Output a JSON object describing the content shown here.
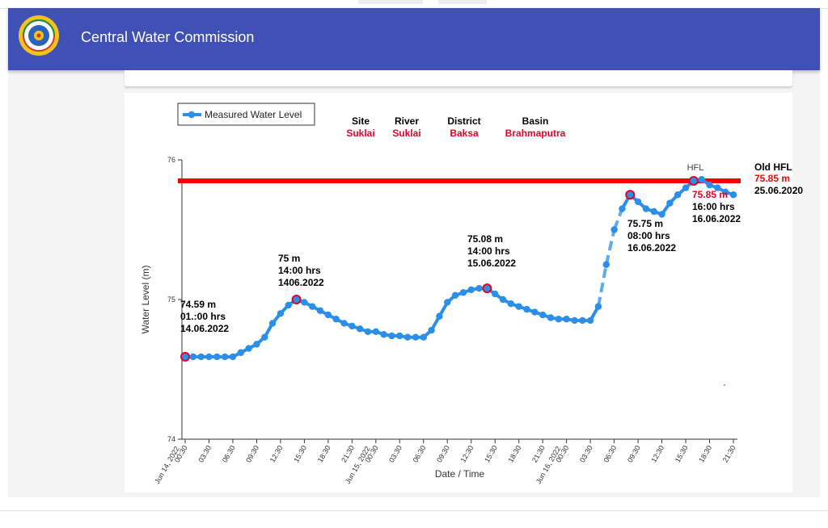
{
  "header": {
    "title": "Central Water Commission",
    "logo_icon": "cwc-emblem-icon"
  },
  "colors": {
    "app_bar": "#3f51b5",
    "series": "#2b8fe8",
    "hfl_line": "#ff0000",
    "highlight_red": "#e8002a"
  },
  "chart_data": {
    "type": "line",
    "xlabel": "Date / Time",
    "ylabel": "Water Level (m)",
    "ylim": [
      74,
      76
    ],
    "yticks": [
      "74",
      "75",
      "76"
    ],
    "grid": false,
    "legend": {
      "label": "Measured Water Level",
      "placement": "top-left"
    },
    "info": [
      {
        "label": "Site",
        "value": "Suklai"
      },
      {
        "label": "River",
        "value": "Suklai"
      },
      {
        "label": "District",
        "value": "Baksa"
      },
      {
        "label": "Basin",
        "value": "Brahmaputra"
      }
    ],
    "x_tick_labels": [
      "00:30",
      "03:30",
      "06:30",
      "09:30",
      "12:30",
      "15:30",
      "18:30",
      "21:30",
      "00:30",
      "03:30",
      "06:30",
      "09:30",
      "12:30",
      "15:30",
      "18:30",
      "21:30",
      "00:30",
      "03:30",
      "06:30",
      "09:30",
      "12:30",
      "15:30",
      "18:30",
      "21:30"
    ],
    "x_date_labels": [
      {
        "tick": 0,
        "text": "Jun 14, 2022"
      },
      {
        "tick": 8,
        "text": "Jun 15, 2022"
      },
      {
        "tick": 16,
        "text": "Jun 16, 2022"
      }
    ],
    "series": [
      {
        "name": "Measured Water Level",
        "points": [
          [
            0,
            74.59
          ],
          [
            1,
            74.59
          ],
          [
            2,
            74.59
          ],
          [
            3,
            74.59
          ],
          [
            4,
            74.59
          ],
          [
            5,
            74.59
          ],
          [
            6,
            74.59
          ],
          [
            7,
            74.62
          ],
          [
            8,
            74.65
          ],
          [
            9,
            74.68
          ],
          [
            10,
            74.73
          ],
          [
            11,
            74.83
          ],
          [
            12,
            74.9
          ],
          [
            13,
            74.96
          ],
          [
            14,
            75.0
          ],
          [
            15,
            74.98
          ],
          [
            16,
            74.95
          ],
          [
            17,
            74.92
          ],
          [
            18,
            74.89
          ],
          [
            19,
            74.86
          ],
          [
            20,
            74.83
          ],
          [
            21,
            74.81
          ],
          [
            22,
            74.79
          ],
          [
            23,
            74.77
          ],
          [
            24,
            74.77
          ],
          [
            25,
            74.75
          ],
          [
            26,
            74.74
          ],
          [
            27,
            74.74
          ],
          [
            28,
            74.73
          ],
          [
            29,
            74.73
          ],
          [
            30,
            74.73
          ],
          [
            31,
            74.78
          ],
          [
            32,
            74.88
          ],
          [
            33,
            74.98
          ],
          [
            34,
            75.03
          ],
          [
            35,
            75.05
          ],
          [
            36,
            75.07
          ],
          [
            37,
            75.08
          ],
          [
            38,
            75.08
          ],
          [
            39,
            75.04
          ],
          [
            40,
            75.0
          ],
          [
            41,
            74.97
          ],
          [
            42,
            74.95
          ],
          [
            43,
            74.93
          ],
          [
            44,
            74.91
          ],
          [
            45,
            74.89
          ],
          [
            46,
            74.87
          ],
          [
            47,
            74.86
          ],
          [
            48,
            74.86
          ],
          [
            49,
            74.85
          ],
          [
            50,
            74.85
          ],
          [
            51,
            74.85
          ],
          [
            52,
            74.95
          ],
          [
            53,
            75.25
          ],
          [
            54,
            75.5
          ],
          [
            55,
            75.65
          ],
          [
            56,
            75.75
          ],
          [
            57,
            75.7
          ],
          [
            58,
            75.65
          ],
          [
            59,
            75.63
          ],
          [
            60,
            75.61
          ],
          [
            61,
            75.69
          ],
          [
            62,
            75.75
          ],
          [
            63,
            75.8
          ],
          [
            64,
            75.85
          ],
          [
            65,
            75.86
          ],
          [
            66,
            75.82
          ],
          [
            67,
            75.8
          ],
          [
            68,
            75.77
          ],
          [
            69,
            75.75
          ]
        ]
      }
    ],
    "hfl": {
      "value": 75.85,
      "label": "HFL",
      "old_hfl_title": "Old HFL",
      "old_hfl_value": "75.85 m",
      "old_hfl_date": "25.06.2020"
    },
    "annotations": [
      {
        "point": 0,
        "lines": [
          "74.59 m",
          "01.:00 hrs",
          "14.06.2022"
        ]
      },
      {
        "point": 14,
        "lines": [
          "75 m",
          "14:00 hrs",
          "1406.2022"
        ]
      },
      {
        "point": 38,
        "lines": [
          "75.08 m",
          "14:00 hrs",
          "15.06.2022"
        ]
      },
      {
        "point": 56,
        "lines": [
          "75.75 m",
          "08:00 hrs",
          "16.06.2022"
        ]
      },
      {
        "point": 64,
        "lines": [
          "75.85 m",
          "16:00 hrs",
          "16.06.2022"
        ]
      }
    ]
  }
}
